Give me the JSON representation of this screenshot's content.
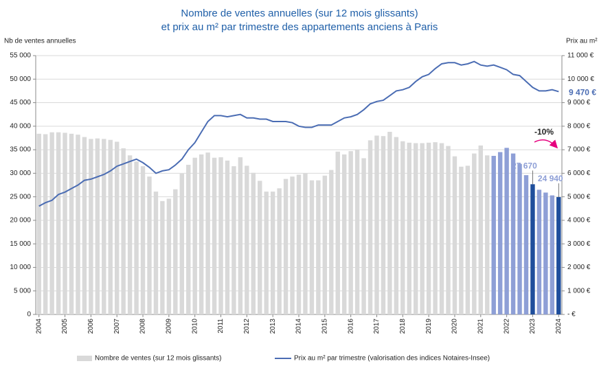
{
  "chart_data": {
    "type": "bar_line",
    "title_line1": "Nombre de ventes annuelles  (sur 12 mois glissants)",
    "title_line2": "et prix au m² par trimestre des appartements anciens à Paris",
    "ylabel": "Nb de ventes annuelles",
    "y2label": "Prix au m²",
    "annotation": "-10%",
    "annotation_color": "#e6007e",
    "grid": true,
    "legend": "bottom",
    "categories": [
      "2004",
      null,
      null,
      null,
      "2005",
      null,
      null,
      null,
      "2006",
      null,
      null,
      null,
      "2007",
      null,
      null,
      null,
      "2008",
      null,
      null,
      null,
      "2009",
      null,
      null,
      null,
      "2010",
      null,
      null,
      null,
      "2011",
      null,
      null,
      null,
      "2012",
      null,
      null,
      null,
      "2013",
      null,
      null,
      null,
      "2014",
      null,
      null,
      null,
      "2015",
      null,
      null,
      null,
      "2016",
      null,
      null,
      null,
      "2017",
      null,
      null,
      null,
      "2018",
      null,
      null,
      null,
      "2019",
      null,
      null,
      null,
      "2020",
      null,
      null,
      null,
      "2021",
      null,
      null,
      null,
      "2022",
      null,
      null,
      null,
      "2023",
      null,
      null,
      null,
      "2024"
    ],
    "ylim": [
      0,
      55000
    ],
    "yticks": [
      0,
      {
        "value": 5000,
        "label": "5 000"
      },
      {
        "value": 10000,
        "label": "10 000"
      },
      {
        "value": 15000,
        "label": "15 000"
      },
      {
        "value": 20000,
        "label": "20 000"
      },
      {
        "value": 25000,
        "label": "25 000"
      },
      {
        "value": 30000,
        "label": "30 000"
      },
      {
        "value": 35000,
        "label": "35 000"
      },
      {
        "value": 40000,
        "label": "40 000"
      },
      {
        "value": 45000,
        "label": "45 000"
      },
      {
        "value": 50000,
        "label": "50 000"
      },
      {
        "value": 55000,
        "label": "55 000"
      }
    ],
    "y2lim": [
      0,
      11000
    ],
    "y2ticks": [
      {
        "value": 0,
        "label": "-   €"
      },
      {
        "value": 1000,
        "label": "1 000 €"
      },
      {
        "value": 2000,
        "label": "2 000 €"
      },
      {
        "value": 3000,
        "label": "3 000 €"
      },
      {
        "value": 4000,
        "label": "4 000 €"
      },
      {
        "value": 5000,
        "label": "5 000 €"
      },
      {
        "value": 6000,
        "label": "6 000 €"
      },
      {
        "value": 7000,
        "label": "7 000 €"
      },
      {
        "value": 8000,
        "label": "8 000 €"
      },
      {
        "value": 9000,
        "label": "9 000 €"
      },
      {
        "value": 10000,
        "label": "10 000 €"
      },
      {
        "value": 11000,
        "label": "11 000 €"
      }
    ],
    "series": [
      {
        "name": "Nombre de ventes (sur 12 mois glissants)",
        "type": "bar",
        "color": "#d9d9d9",
        "colors": [
          "#d9d9d9",
          "#d9d9d9",
          "#d9d9d9",
          "#d9d9d9",
          "#d9d9d9",
          "#d9d9d9",
          "#d9d9d9",
          "#d9d9d9",
          "#d9d9d9",
          "#d9d9d9",
          "#d9d9d9",
          "#d9d9d9",
          "#d9d9d9",
          "#d9d9d9",
          "#d9d9d9",
          "#d9d9d9",
          "#d9d9d9",
          "#d9d9d9",
          "#d9d9d9",
          "#d9d9d9",
          "#d9d9d9",
          "#d9d9d9",
          "#d9d9d9",
          "#d9d9d9",
          "#d9d9d9",
          "#d9d9d9",
          "#d9d9d9",
          "#d9d9d9",
          "#d9d9d9",
          "#d9d9d9",
          "#d9d9d9",
          "#d9d9d9",
          "#d9d9d9",
          "#d9d9d9",
          "#d9d9d9",
          "#d9d9d9",
          "#d9d9d9",
          "#d9d9d9",
          "#d9d9d9",
          "#d9d9d9",
          "#d9d9d9",
          "#d9d9d9",
          "#d9d9d9",
          "#d9d9d9",
          "#d9d9d9",
          "#d9d9d9",
          "#d9d9d9",
          "#d9d9d9",
          "#d9d9d9",
          "#d9d9d9",
          "#d9d9d9",
          "#d9d9d9",
          "#d9d9d9",
          "#d9d9d9",
          "#d9d9d9",
          "#d9d9d9",
          "#d9d9d9",
          "#d9d9d9",
          "#d9d9d9",
          "#d9d9d9",
          "#d9d9d9",
          "#d9d9d9",
          "#d9d9d9",
          "#d9d9d9",
          "#d9d9d9",
          "#d9d9d9",
          "#d9d9d9",
          "#d9d9d9",
          "#d9d9d9",
          "#d9d9d9",
          "#8e9fd6",
          "#8e9fd6",
          "#8e9fd6",
          "#8e9fd6",
          "#8e9fd6",
          "#8e9fd6",
          "#1f4e9c",
          "#8e9fd6",
          "#8e9fd6",
          "#8e9fd6",
          "#1f4e9c"
        ],
        "values": [
          38400,
          38300,
          38700,
          38700,
          38600,
          38400,
          38200,
          37700,
          37300,
          37400,
          37300,
          37100,
          36700,
          35300,
          33800,
          32500,
          31500,
          29300,
          26100,
          24100,
          24600,
          26600,
          29900,
          31800,
          33300,
          34000,
          34400,
          33300,
          33400,
          32700,
          31500,
          33400,
          31600,
          30100,
          28400,
          26100,
          26100,
          26800,
          28800,
          29300,
          29700,
          30000,
          28500,
          28500,
          29500,
          30700,
          34600,
          34000,
          34700,
          35000,
          33200,
          37000,
          38000,
          37900,
          38800,
          37700,
          36800,
          36500,
          36400,
          36400,
          36500,
          36600,
          36400,
          35800,
          33600,
          31400,
          31600,
          34200,
          35900,
          33800,
          33700,
          34500,
          35400,
          34200,
          32000,
          29600,
          27670,
          26500,
          25900,
          25300,
          24940
        ],
        "value_labels": [
          null,
          null,
          null,
          null,
          null,
          null,
          null,
          null,
          null,
          null,
          null,
          null,
          null,
          null,
          null,
          null,
          null,
          null,
          null,
          null,
          null,
          null,
          null,
          null,
          null,
          null,
          null,
          null,
          null,
          null,
          null,
          null,
          null,
          null,
          null,
          null,
          null,
          null,
          null,
          null,
          null,
          null,
          null,
          null,
          null,
          null,
          null,
          null,
          null,
          null,
          null,
          null,
          null,
          null,
          null,
          null,
          null,
          null,
          null,
          null,
          null,
          null,
          null,
          null,
          null,
          null,
          null,
          null,
          null,
          null,
          null,
          null,
          null,
          null,
          null,
          null,
          "27 670",
          null,
          null,
          null,
          "24 940"
        ]
      },
      {
        "name": "Prix au m² par trimestre (valorisation des indices Notaires-Insee)",
        "type": "line",
        "axis": "y2",
        "color": "#4a6cb3",
        "values": [
          4600,
          4750,
          4850,
          5100,
          5200,
          5350,
          5500,
          5700,
          5750,
          5850,
          5950,
          6100,
          6300,
          6400,
          6500,
          6600,
          6450,
          6250,
          6000,
          6100,
          6150,
          6350,
          6600,
          7000,
          7300,
          7750,
          8200,
          8450,
          8450,
          8400,
          8450,
          8500,
          8350,
          8350,
          8300,
          8300,
          8200,
          8200,
          8200,
          8150,
          8000,
          7950,
          7950,
          8050,
          8050,
          8050,
          8200,
          8350,
          8400,
          8500,
          8700,
          8950,
          9050,
          9100,
          9300,
          9500,
          9550,
          9650,
          9900,
          10100,
          10200,
          10450,
          10650,
          10700,
          10700,
          10600,
          10650,
          10750,
          10600,
          10550,
          10600,
          10500,
          10400,
          10200,
          10150,
          9900,
          9650,
          9500,
          9500,
          9550,
          9470
        ],
        "value_labels": [
          null,
          null,
          null,
          null,
          null,
          null,
          null,
          null,
          null,
          null,
          null,
          null,
          null,
          null,
          null,
          null,
          null,
          null,
          null,
          null,
          null,
          null,
          null,
          null,
          null,
          null,
          null,
          null,
          null,
          null,
          null,
          null,
          null,
          null,
          null,
          null,
          null,
          null,
          null,
          null,
          null,
          null,
          null,
          null,
          null,
          null,
          null,
          null,
          null,
          null,
          null,
          null,
          null,
          null,
          null,
          null,
          null,
          null,
          null,
          null,
          null,
          null,
          null,
          null,
          null,
          null,
          null,
          null,
          null,
          null,
          null,
          null,
          null,
          null,
          null,
          null,
          null,
          null,
          null,
          null,
          "9 470 €"
        ]
      }
    ]
  }
}
